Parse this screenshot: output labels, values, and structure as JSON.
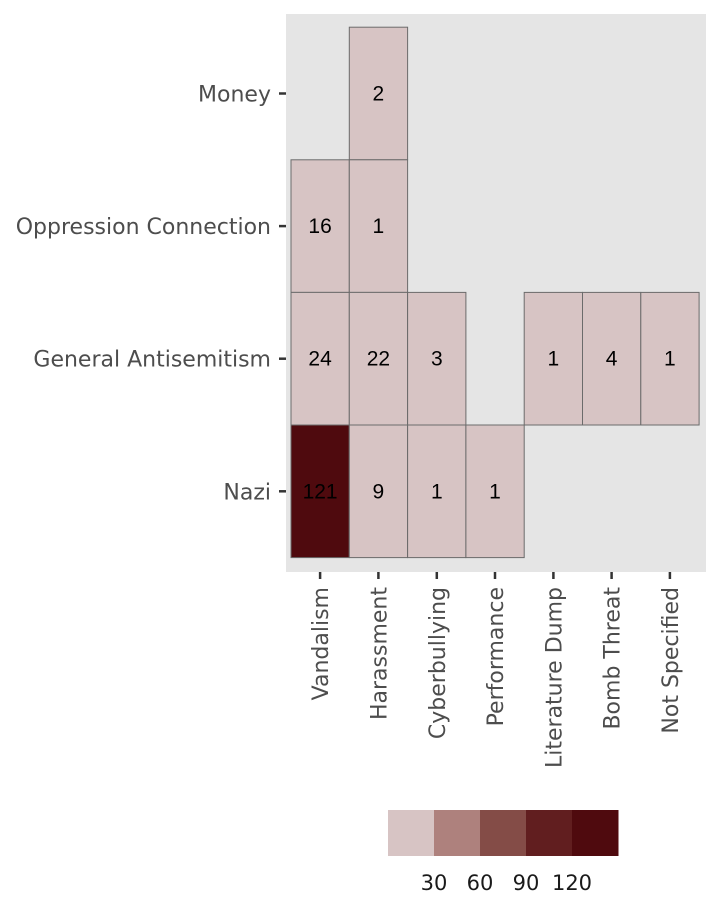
{
  "chart_data": {
    "type": "heatmap",
    "title": "",
    "xlabel": "",
    "ylabel": "",
    "x_categories": [
      "Vandalism",
      "Harassment",
      "Cyberbullying",
      "Performance",
      "Literature Dump",
      "Bomb Threat",
      "Not Specified"
    ],
    "y_categories": [
      "Nazi",
      "General Antisemitism",
      "Oppression Connection",
      "Money"
    ],
    "cells": [
      {
        "x": "Harassment",
        "y": "Money",
        "value": 2,
        "label": "2"
      },
      {
        "x": "Vandalism",
        "y": "Oppression Connection",
        "value": 16,
        "label": "16"
      },
      {
        "x": "Harassment",
        "y": "Oppression Connection",
        "value": 1,
        "label": "1"
      },
      {
        "x": "Vandalism",
        "y": "General Antisemitism",
        "value": 24,
        "label": "24"
      },
      {
        "x": "Harassment",
        "y": "General Antisemitism",
        "value": 22,
        "label": "22"
      },
      {
        "x": "Cyberbullying",
        "y": "General Antisemitism",
        "value": 3,
        "label": "3"
      },
      {
        "x": "Literature Dump",
        "y": "General Antisemitism",
        "value": 1,
        "label": "1"
      },
      {
        "x": "Bomb Threat",
        "y": "General Antisemitism",
        "value": 4,
        "label": "4"
      },
      {
        "x": "Not Specified",
        "y": "General Antisemitism",
        "value": 1,
        "label": "1"
      },
      {
        "x": "Vandalism",
        "y": "Nazi",
        "value": 121,
        "label": "121"
      },
      {
        "x": "Harassment",
        "y": "Nazi",
        "value": 9,
        "label": "9"
      },
      {
        "x": "Cyberbullying",
        "y": "Nazi",
        "value": 1,
        "label": "1"
      },
      {
        "x": "Performance",
        "y": "Nazi",
        "value": 1,
        "label": "1"
      }
    ],
    "grid": false,
    "legend": {
      "placement": "bottom",
      "breaks": [
        30,
        60,
        90,
        120
      ],
      "tick_labels": [
        "30",
        "60",
        "90",
        "120"
      ],
      "bins": [
        {
          "from": 0,
          "to": 30,
          "color": "#d7c4c4"
        },
        {
          "from": 30,
          "to": 60,
          "color": "#ae817d"
        },
        {
          "from": 60,
          "to": 90,
          "color": "#844c47"
        },
        {
          "from": 90,
          "to": 120,
          "color": "#611e1f"
        },
        {
          "from": 120,
          "to": 150,
          "color": "#4f0a0e"
        }
      ]
    },
    "colors": {
      "panel_background": "#e5e5e5",
      "cell_border": "#6b6b6b",
      "axis_text": "#4d4d4d",
      "tick": "#333333"
    }
  }
}
